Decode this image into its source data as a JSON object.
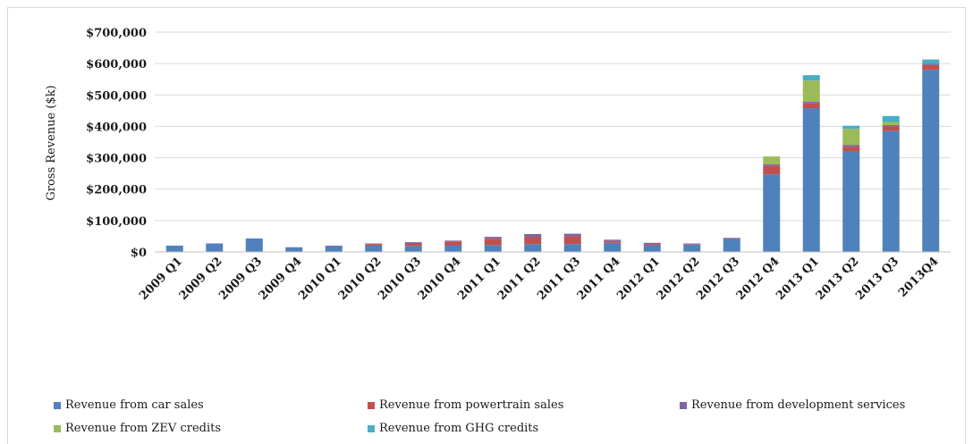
{
  "chart_data": {
    "type": "bar",
    "stacked": true,
    "ylabel": "Gross Revenue ($k)",
    "ylim": [
      0,
      700000
    ],
    "yticks": [
      0,
      100000,
      200000,
      300000,
      400000,
      500000,
      600000,
      700000
    ],
    "ytick_labels": [
      "$0",
      "$100,000",
      "$200,000",
      "$300,000",
      "$400,000",
      "$500,000",
      "$600,000",
      "$700,000"
    ],
    "grid": true,
    "legend_position": "bottom",
    "categories": [
      "2009 Q1",
      "2009 Q2",
      "2009 Q3",
      "2009 Q4",
      "2010 Q1",
      "2010 Q2",
      "2010 Q3",
      "2010 Q4",
      "2011 Q1",
      "2011 Q2",
      "2011 Q3",
      "2011 Q4",
      "2012 Q1",
      "2012 Q2",
      "2012 Q3",
      "2012 Q4",
      "2013 Q1",
      "2013 Q2",
      "2013 Q3",
      "2013Q4"
    ],
    "series": [
      {
        "name": "Revenue from car sales",
        "color": "#4f81bd",
        "values": [
          20000,
          27000,
          43000,
          15000,
          18000,
          20000,
          19000,
          20000,
          22000,
          25000,
          25000,
          29000,
          23000,
          23000,
          42000,
          247000,
          458000,
          320000,
          385000,
          580000
        ]
      },
      {
        "name": "Revenue from powertrain sales",
        "color": "#c0504d",
        "values": [
          0,
          0,
          0,
          0,
          1000,
          5000,
          8000,
          12000,
          20000,
          22000,
          25000,
          6000,
          4000,
          2000,
          1000,
          27000,
          15000,
          15000,
          15000,
          15000
        ]
      },
      {
        "name": "Revenue from development services",
        "color": "#8064a2",
        "values": [
          0,
          0,
          0,
          0,
          1000,
          2000,
          4000,
          4000,
          6000,
          10000,
          8000,
          4000,
          2000,
          2000,
          2000,
          5000,
          5000,
          6000,
          4000,
          4000
        ]
      },
      {
        "name": "Revenue from ZEV credits",
        "color": "#9bbb59",
        "values": [
          0,
          0,
          0,
          0,
          0,
          0,
          0,
          0,
          0,
          0,
          0,
          0,
          0,
          0,
          0,
          25000,
          68000,
          51000,
          9000,
          0
        ]
      },
      {
        "name": "Revenue from GHG credits",
        "color": "#4bacc6",
        "values": [
          0,
          0,
          0,
          0,
          0,
          0,
          0,
          0,
          0,
          0,
          0,
          0,
          0,
          0,
          0,
          0,
          17000,
          10000,
          20000,
          14000
        ]
      }
    ]
  }
}
